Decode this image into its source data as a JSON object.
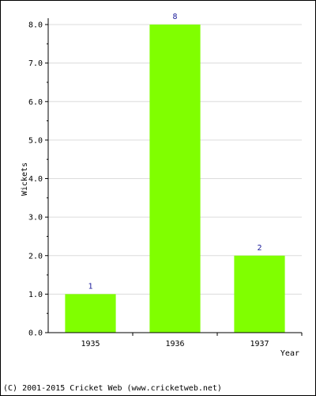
{
  "chart_data": {
    "type": "bar",
    "categories": [
      "1935",
      "1936",
      "1937"
    ],
    "values": [
      1,
      8,
      2
    ],
    "data_labels": [
      "1",
      "8",
      "2"
    ],
    "title": "",
    "xlabel": "Year",
    "ylabel": "Wickets",
    "ylim": [
      0,
      8
    ],
    "y_ticks": [
      "0.0",
      "1.0",
      "2.0",
      "3.0",
      "4.0",
      "5.0",
      "6.0",
      "7.0",
      "8.0"
    ],
    "grid": true,
    "bar_color": "#80ff00",
    "label_color": "#1a1a9a"
  },
  "footer": "(C) 2001-2015 Cricket Web (www.cricketweb.net)"
}
